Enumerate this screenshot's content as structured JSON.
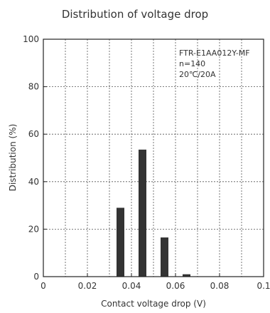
{
  "chart_data": {
    "type": "bar",
    "title": "Distribution of voltage drop",
    "xlabel": "Contact voltage drop (V)",
    "ylabel": "Distribution (%)",
    "xlim": [
      0,
      0.1
    ],
    "ylim": [
      0,
      100
    ],
    "x_ticks": [
      "0",
      "0.02",
      "0.04",
      "0.06",
      "0.08",
      "0.1"
    ],
    "y_ticks": [
      "0",
      "20",
      "40",
      "60",
      "80",
      "100"
    ],
    "grid": true,
    "annotations": [
      "FTR-E1AA012Y-MF",
      "n=140",
      "20℃/20A"
    ],
    "bars": [
      {
        "x": 0.035,
        "value": 29
      },
      {
        "x": 0.045,
        "value": 53.5
      },
      {
        "x": 0.055,
        "value": 16.5
      },
      {
        "x": 0.065,
        "value": 1
      }
    ],
    "colors": {
      "bar": "#333333",
      "grid": "#555555",
      "axis": "#222222"
    }
  }
}
